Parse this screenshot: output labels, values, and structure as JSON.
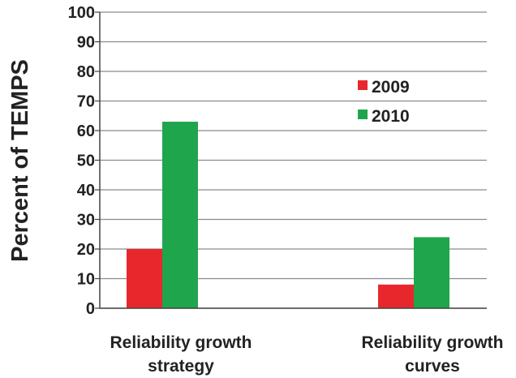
{
  "chart_data": {
    "type": "bar",
    "ylabel": "Percent of TEMPS",
    "ylim": [
      0,
      100
    ],
    "yticks": [
      "0",
      "10",
      "20",
      "30",
      "40",
      "50",
      "60",
      "70",
      "80",
      "90",
      "100"
    ],
    "grid": true,
    "legend_position": "top-right",
    "categories": [
      [
        "Reliability growth",
        "strategy"
      ],
      [
        "Reliability growth",
        "curves"
      ]
    ],
    "series": [
      {
        "name": "2009",
        "values": [
          20,
          8
        ],
        "color": "#e8272d"
      },
      {
        "name": "2010",
        "values": [
          63,
          24
        ],
        "color": "#1fa54c"
      }
    ]
  }
}
